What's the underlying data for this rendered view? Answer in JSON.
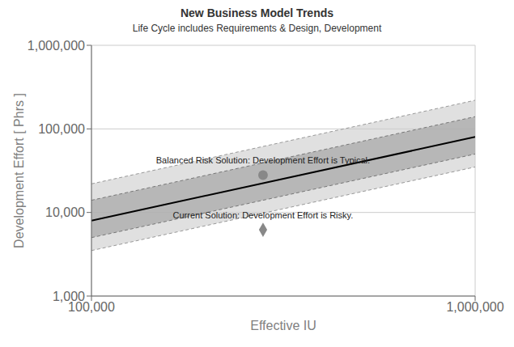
{
  "chart_data": {
    "type": "line",
    "title": "New Business Model Trends",
    "subtitle": "Life Cycle includes Requirements & Design, Development",
    "x_label": "Effective IU",
    "y_label": "Development Effort [ Phrs ]",
    "log": true,
    "grid": true,
    "xlim": [
      100000,
      1000000
    ],
    "ylim": [
      1000,
      1000000
    ],
    "xticks": [
      {
        "value": 100000,
        "label": "100,000"
      },
      {
        "value": 1000000,
        "label": "1,000,000"
      }
    ],
    "yticks": [
      {
        "value": 1000,
        "label": "1,000"
      },
      {
        "value": 10000,
        "label": "10,000"
      },
      {
        "value": 100000,
        "label": "100,000"
      },
      {
        "value": 1000000,
        "label": "1,000,000"
      }
    ],
    "x": [
      100000,
      1000000
    ],
    "series": [
      {
        "type": "band",
        "color": "#cccccc",
        "line_style": "dashed",
        "lower": [
          3500,
          35000
        ],
        "upper": [
          22000,
          220000
        ]
      },
      {
        "type": "band",
        "color": "#aaaaaa",
        "line_style": "dashed",
        "lower": [
          5000,
          50000
        ],
        "upper": [
          14000,
          140000
        ]
      },
      {
        "type": "line",
        "color": "#000000",
        "line_style": "solid",
        "values": [
          8000,
          80000
        ]
      },
      {
        "type": "scatter",
        "color": "#888888",
        "marker": "circle",
        "x": [
          280000
        ],
        "values": [
          28000
        ],
        "label": "Balanced Risk Solution: Development Effort is Typical."
      },
      {
        "type": "scatter",
        "color": "#888888",
        "marker": "diamond",
        "x": [
          280000
        ],
        "values": [
          6200
        ],
        "label": "Current Solution: Development Effort is Risky."
      }
    ]
  }
}
